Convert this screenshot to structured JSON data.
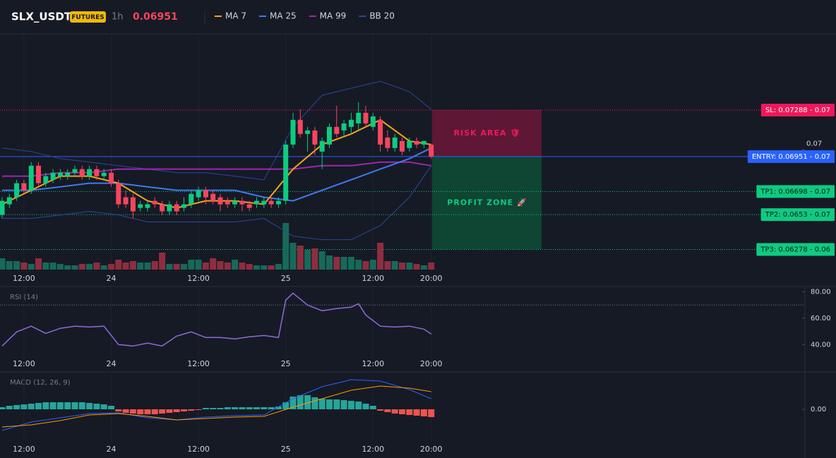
{
  "chart_data": [
    {
      "type": "candlestick",
      "title": "SLX_USDT",
      "badge": "FUTURES",
      "interval": "1h",
      "last_price": 0.06951,
      "up_color": "#0ecb81",
      "down_color": "#f6465d",
      "volume_up_color": "#17695a",
      "volume_down_color": "#8f2d40",
      "ylim": [
        0.0604,
        0.0784
      ],
      "yticks": [
        0.07
      ],
      "xticks": [
        {
          "value": 3,
          "label": "12:00"
        },
        {
          "value": 15,
          "label": "24"
        },
        {
          "value": 27,
          "label": "12:00"
        },
        {
          "value": 39,
          "label": "25"
        },
        {
          "value": 51,
          "label": "12:00"
        },
        {
          "value": 59,
          "label": "20:00"
        }
      ],
      "open": [
        0.06528,
        0.06605,
        0.06656,
        0.06758,
        0.06707,
        0.06885,
        0.06758,
        0.06783,
        0.06809,
        0.06809,
        0.06834,
        0.0686,
        0.06809,
        0.0686,
        0.06809,
        0.06834,
        0.06758,
        0.06656,
        0.06656,
        0.06579,
        0.06579,
        0.0663,
        0.06605,
        0.06554,
        0.06605,
        0.06579,
        0.06605,
        0.06656,
        0.06707,
        0.06681,
        0.06656,
        0.0663,
        0.06605,
        0.0663,
        0.06605,
        0.06605,
        0.06605,
        0.0663,
        0.06605,
        0.0663,
        0.07038,
        0.07217,
        0.07115,
        0.0714,
        0.06987,
        0.07038,
        0.07166,
        0.0714,
        0.07166,
        0.07191,
        0.07268,
        0.07166,
        0.07217,
        0.07089,
        0.07013,
        0.07064,
        0.07013,
        0.07064,
        0.07038,
        0.07038
      ],
      "high": [
        0.06656,
        0.06681,
        0.06783,
        0.06783,
        0.06911,
        0.06911,
        0.06834,
        0.0686,
        0.0686,
        0.0686,
        0.06885,
        0.06885,
        0.06885,
        0.06885,
        0.0686,
        0.0686,
        0.06783,
        0.06707,
        0.06681,
        0.0663,
        0.0663,
        0.06656,
        0.0663,
        0.0663,
        0.0663,
        0.06656,
        0.06707,
        0.06732,
        0.06732,
        0.06707,
        0.06681,
        0.06656,
        0.06656,
        0.06656,
        0.0663,
        0.06656,
        0.06656,
        0.06656,
        0.06656,
        0.07064,
        0.07268,
        0.07293,
        0.07166,
        0.07166,
        0.07089,
        0.07191,
        0.07319,
        0.07217,
        0.07268,
        0.07344,
        0.07319,
        0.07268,
        0.07242,
        0.0714,
        0.07115,
        0.07089,
        0.07089,
        0.07089,
        0.07064,
        0.07038
      ],
      "low": [
        0.06503,
        0.06579,
        0.0663,
        0.06681,
        0.06681,
        0.06732,
        0.06732,
        0.06758,
        0.06783,
        0.06783,
        0.06809,
        0.06783,
        0.06783,
        0.06783,
        0.06783,
        0.06732,
        0.06579,
        0.06579,
        0.06503,
        0.06554,
        0.06554,
        0.06579,
        0.06528,
        0.06528,
        0.06528,
        0.06554,
        0.06579,
        0.0663,
        0.06605,
        0.06605,
        0.06554,
        0.06579,
        0.06579,
        0.06554,
        0.06554,
        0.06579,
        0.06579,
        0.06579,
        0.06579,
        0.06605,
        0.07013,
        0.07089,
        0.06987,
        0.06962,
        0.0686,
        0.07013,
        0.07089,
        0.07089,
        0.07115,
        0.0714,
        0.07166,
        0.0714,
        0.06987,
        0.06987,
        0.06987,
        0.06962,
        0.06987,
        0.07013,
        0.07013,
        0.06936
      ],
      "close": [
        0.0663,
        0.06656,
        0.06758,
        0.06707,
        0.06885,
        0.06758,
        0.06809,
        0.06834,
        0.06834,
        0.06834,
        0.0686,
        0.06809,
        0.0686,
        0.06809,
        0.06834,
        0.06758,
        0.06605,
        0.06605,
        0.06554,
        0.06605,
        0.06605,
        0.06605,
        0.06554,
        0.06605,
        0.06554,
        0.06605,
        0.06681,
        0.06707,
        0.06656,
        0.0663,
        0.06605,
        0.06605,
        0.0663,
        0.06605,
        0.06579,
        0.0663,
        0.0663,
        0.06605,
        0.0663,
        0.07038,
        0.07217,
        0.07115,
        0.0714,
        0.07038,
        0.07064,
        0.07166,
        0.07115,
        0.07191,
        0.07217,
        0.07268,
        0.07191,
        0.07242,
        0.07038,
        0.07013,
        0.07089,
        0.06987,
        0.07064,
        0.07038,
        0.07064,
        0.06951
      ],
      "volume": [
        16,
        12,
        12,
        10,
        8,
        16,
        10,
        10,
        8,
        6,
        6,
        8,
        8,
        10,
        6,
        8,
        14,
        10,
        12,
        10,
        10,
        12,
        24,
        8,
        8,
        8,
        14,
        14,
        10,
        16,
        12,
        10,
        14,
        10,
        8,
        6,
        6,
        6,
        8,
        66,
        38,
        34,
        28,
        30,
        26,
        20,
        18,
        18,
        18,
        14,
        12,
        14,
        38,
        12,
        12,
        10,
        10,
        8,
        6,
        10
      ],
      "series": [
        {
          "name": "MA 7",
          "color": "#f7a21b",
          "x": [
            0,
            4,
            8,
            12,
            16,
            20,
            24,
            28,
            32,
            36,
            40,
            44,
            48,
            52,
            56,
            59
          ],
          "values": [
            0.06605,
            0.06707,
            0.06809,
            0.06809,
            0.06758,
            0.0663,
            0.06579,
            0.0663,
            0.0663,
            0.06605,
            0.0686,
            0.07038,
            0.07115,
            0.07217,
            0.07064,
            0.07038
          ]
        },
        {
          "name": "MA 25",
          "color": "#3b7bf0",
          "x": [
            0,
            4,
            8,
            12,
            16,
            20,
            24,
            28,
            32,
            36,
            40,
            44,
            48,
            52,
            56,
            59
          ],
          "values": [
            0.06707,
            0.06707,
            0.06732,
            0.06758,
            0.06758,
            0.06732,
            0.06707,
            0.06707,
            0.06707,
            0.06656,
            0.0663,
            0.06707,
            0.06783,
            0.0686,
            0.06936,
            0.07013
          ]
        },
        {
          "name": "MA 99",
          "color": "#9c27b0",
          "x": [
            0,
            4,
            8,
            12,
            16,
            20,
            24,
            28,
            32,
            36,
            40,
            44,
            48,
            52,
            56,
            59
          ],
          "values": [
            0.06809,
            0.06809,
            0.06834,
            0.06834,
            0.0686,
            0.0686,
            0.0686,
            0.0686,
            0.0686,
            0.0686,
            0.0686,
            0.06885,
            0.06885,
            0.06911,
            0.06911,
            0.06885
          ]
        },
        {
          "name": "BB 20",
          "color": "#2a47a0",
          "x": [
            0,
            4,
            8,
            12,
            16,
            20,
            24,
            28,
            32,
            36,
            40,
            44,
            48,
            52,
            56,
            59
          ],
          "upper": [
            0.07013,
            0.06987,
            0.06936,
            0.06911,
            0.06885,
            0.0686,
            0.06834,
            0.06834,
            0.06809,
            0.06783,
            0.07166,
            0.07395,
            0.07446,
            0.07497,
            0.07421,
            0.07293
          ],
          "lower": [
            0.06503,
            0.06503,
            0.06528,
            0.06554,
            0.06528,
            0.06477,
            0.06477,
            0.06477,
            0.06477,
            0.06503,
            0.06375,
            0.06349,
            0.06349,
            0.06451,
            0.06656,
            0.06885
          ]
        }
      ],
      "zones": [
        {
          "label": "RISK AREA 🛡",
          "from": 0.06951,
          "to": 0.07288,
          "color": "#6b1838",
          "text_color": "#f0185a"
        },
        {
          "label": "PROFIT ZONE 🚀",
          "from": 0.06278,
          "to": 0.06951,
          "color": "#0d4d36",
          "text_color": "#0ecb81"
        }
      ],
      "levels": [
        {
          "label": "SL: 0.07288 - 0.07",
          "value": 0.07288,
          "color": "#f0185a",
          "text_color": "#ffffff",
          "dashed": true
        },
        {
          "label": "ENTRY: 0.06951 - 0.07",
          "value": 0.06951,
          "color": "#2962ff",
          "text_color": "#ffffff",
          "dashed": false
        },
        {
          "label": "TP1: 0.06698 - 0.07",
          "value": 0.06698,
          "color": "#0ecb81",
          "text_color": "#0b1a14",
          "dashed": true
        },
        {
          "label": "TP2: 0.0653 - 0.07",
          "value": 0.0653,
          "color": "#0ecb81",
          "text_color": "#0b1a14",
          "dashed": true
        },
        {
          "label": "TP3: 0.06278 - 0.06",
          "value": 0.06278,
          "color": "#0ecb81",
          "text_color": "#0b1a14",
          "dashed": true
        }
      ]
    },
    {
      "type": "line",
      "title": "RSI (14)",
      "color": "#8e6ad8",
      "ylim": [
        30,
        85
      ],
      "guide_levels": [
        70
      ],
      "yticks": [
        {
          "value": 80,
          "label": "80.00"
        },
        {
          "value": 60,
          "label": "60.00"
        },
        {
          "value": 40,
          "label": "40.00"
        }
      ],
      "xticks": [
        {
          "value": 3,
          "label": "12:00"
        },
        {
          "value": 15,
          "label": "24"
        },
        {
          "value": 27,
          "label": "12:00"
        },
        {
          "value": 39,
          "label": "25"
        },
        {
          "value": 51,
          "label": "12:00"
        },
        {
          "value": 59,
          "label": "20:00"
        }
      ],
      "x": [
        0,
        2,
        4,
        6,
        8,
        10,
        12,
        14,
        16,
        18,
        20,
        22,
        24,
        26,
        28,
        30,
        32,
        34,
        36,
        38,
        39,
        40,
        42,
        44,
        46,
        48,
        49,
        50,
        52,
        54,
        56,
        58,
        59
      ],
      "values": [
        38.9,
        49.6,
        53.9,
        48.5,
        52.3,
        53.9,
        53.3,
        53.9,
        40.0,
        38.9,
        41.1,
        38.9,
        46.4,
        49.6,
        45.3,
        45.3,
        44.3,
        45.9,
        46.9,
        45.3,
        73.6,
        78.9,
        69.9,
        65.6,
        67.2,
        68.3,
        70.9,
        62.4,
        53.9,
        53.3,
        53.9,
        51.7,
        48.0
      ]
    },
    {
      "type": "macd",
      "title": "MACD (12, 26, 9)",
      "ylim": [
        -0.00045,
        0.0005
      ],
      "pos_color": "#26a69a",
      "neg_color": "#ef5350",
      "yticks": [
        {
          "value": 0,
          "label": "0.00"
        }
      ],
      "xticks": [
        {
          "value": 3,
          "label": "12:00"
        },
        {
          "value": 15,
          "label": "24"
        },
        {
          "value": 27,
          "label": "12:00"
        },
        {
          "value": 39,
          "label": "25"
        },
        {
          "value": 51,
          "label": "12:00"
        },
        {
          "value": 59,
          "label": "20:00"
        }
      ],
      "histogram": [
        3e-05,
        5e-05,
        6e-05,
        7e-05,
        8e-05,
        9e-05,
        0.0001,
        0.0001,
        0.0001,
        0.0001,
        0.0001,
        0.0001,
        9e-05,
        8e-05,
        7e-05,
        5e-05,
        -3e-05,
        -5e-05,
        -6e-05,
        -7e-05,
        -7e-05,
        -7e-05,
        -6e-05,
        -5e-05,
        -4e-05,
        -3e-05,
        -2e-05,
        -1e-05,
        2e-05,
        2e-05,
        2e-05,
        3e-05,
        3e-05,
        3e-05,
        3e-05,
        3e-05,
        3e-05,
        3e-05,
        4e-05,
        0.0001,
        0.00018,
        0.0002,
        0.0002,
        0.00017,
        0.00015,
        0.00014,
        0.00014,
        0.00013,
        0.00012,
        0.00011,
        8e-05,
        5e-05,
        -2e-05,
        -4e-05,
        -6e-05,
        -7e-05,
        -8e-05,
        -9e-05,
        -0.0001,
        -0.00011
      ],
      "series": [
        {
          "color": "#2962ff",
          "x": [
            0,
            4,
            8,
            12,
            16,
            20,
            24,
            28,
            32,
            36,
            40,
            44,
            48,
            52,
            56,
            59
          ],
          "values": [
            -0.0003,
            -0.00018,
            -0.00012,
            -6e-05,
            -5e-05,
            -0.00012,
            -0.00015,
            -0.00011,
            -9e-05,
            -8e-05,
            0.00015,
            0.00032,
            0.00042,
            0.0004,
            0.00028,
            0.00015
          ]
        },
        {
          "color": "#ff9800",
          "x": [
            0,
            4,
            8,
            12,
            16,
            20,
            24,
            28,
            32,
            36,
            40,
            44,
            48,
            52,
            56,
            59
          ],
          "values": [
            -0.00025,
            -0.00022,
            -0.00016,
            -8e-05,
            -6e-05,
            -0.0001,
            -0.00015,
            -0.00013,
            -0.00011,
            -0.0001,
            3e-05,
            0.00015,
            0.00027,
            0.00033,
            0.0003,
            0.00025
          ]
        }
      ]
    }
  ]
}
